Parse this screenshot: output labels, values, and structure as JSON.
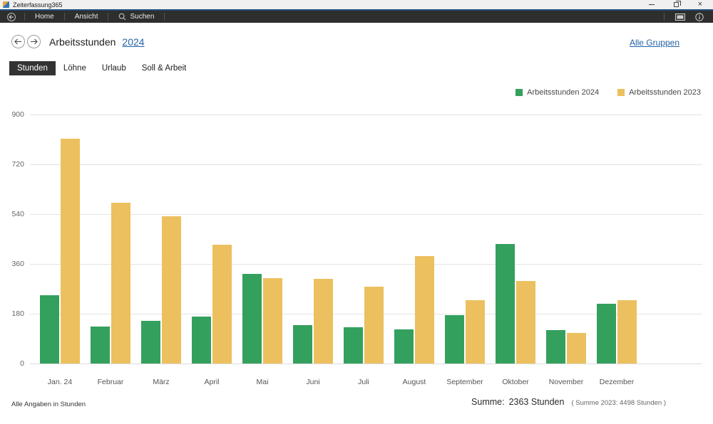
{
  "window": {
    "title": "Zeiterfassung365"
  },
  "menubar": {
    "items": [
      {
        "label": "Home"
      },
      {
        "label": "Ansicht"
      },
      {
        "label": "Suchen"
      }
    ]
  },
  "header": {
    "title": "Arbeitsstunden",
    "year_link": "2024",
    "groups_link": "Alle Gruppen"
  },
  "tabs": [
    {
      "label": "Stunden",
      "selected": true
    },
    {
      "label": "Löhne",
      "selected": false
    },
    {
      "label": "Urlaub",
      "selected": false
    },
    {
      "label": "Soll & Arbeit",
      "selected": false
    }
  ],
  "chart_data": {
    "type": "bar",
    "title": "Arbeitsstunden 2024 vs 2023",
    "categories": [
      "Jan. 24",
      "Februar",
      "März",
      "April",
      "Mai",
      "Juni",
      "Juli",
      "August",
      "September",
      "Oktober",
      "November",
      "Dezember"
    ],
    "series": [
      {
        "name": "Arbeitsstunden 2024",
        "color": "#34a05e",
        "values": [
          248,
          133,
          153,
          170,
          325,
          138,
          131,
          123,
          174,
          432,
          121,
          215
        ]
      },
      {
        "name": "Arbeitsstunden 2023",
        "color": "#ecc05e",
        "values": [
          812,
          580,
          533,
          430,
          308,
          305,
          277,
          389,
          228,
          298,
          110,
          228
        ]
      }
    ],
    "ylim": [
      0,
      900
    ],
    "yticks": [
      0,
      180,
      360,
      540,
      720,
      900
    ],
    "grid": true,
    "legend_position": "top-right"
  },
  "footer": {
    "note": "Alle Angaben in Stunden",
    "sum_label": "Summe:",
    "sum_value": "2363 Stunden",
    "sum_prev": "( Summe 2023: 4498 Stunden )"
  }
}
